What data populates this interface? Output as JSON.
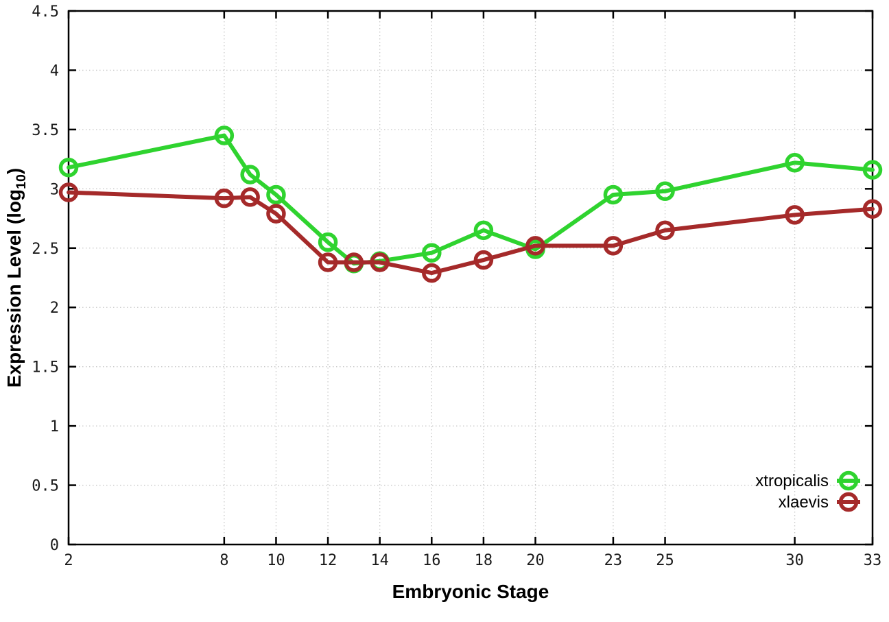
{
  "chart_data": {
    "type": "line",
    "title": "",
    "xlabel": "Embryonic Stage",
    "ylabel": "Expression Level (log10)",
    "ylabel_parts": {
      "pre": "Expression Level (log",
      "sub": "10",
      "post": ")"
    },
    "x": [
      2,
      8,
      9,
      10,
      12,
      13,
      14,
      16,
      18,
      20,
      23,
      25,
      30,
      33
    ],
    "xlim": [
      2,
      33
    ],
    "ylim": [
      0,
      4.5
    ],
    "xticks": [
      2,
      8,
      10,
      12,
      14,
      16,
      18,
      20,
      23,
      25,
      30,
      33
    ],
    "yticks": [
      0,
      0.5,
      1,
      1.5,
      2,
      2.5,
      3,
      3.5,
      4,
      4.5
    ],
    "grid": true,
    "legend_position": "bottom-right",
    "series": [
      {
        "name": "xtropicalis",
        "color": "#2fd32f",
        "marker": "open-circle",
        "values": [
          3.18,
          3.45,
          3.12,
          2.95,
          2.55,
          2.37,
          2.39,
          2.46,
          2.65,
          2.49,
          2.95,
          2.98,
          3.22,
          3.16
        ]
      },
      {
        "name": "xlaevis",
        "color": "#a52a2a",
        "marker": "open-circle",
        "values": [
          2.97,
          2.92,
          2.93,
          2.79,
          2.38,
          2.38,
          2.38,
          2.29,
          2.4,
          2.52,
          2.52,
          2.65,
          2.78,
          2.83
        ]
      }
    ],
    "colors": {
      "background": "#ffffff",
      "axis": "#000000",
      "grid": "#c8c8c8",
      "tick_text": "#1a1a1a"
    }
  }
}
